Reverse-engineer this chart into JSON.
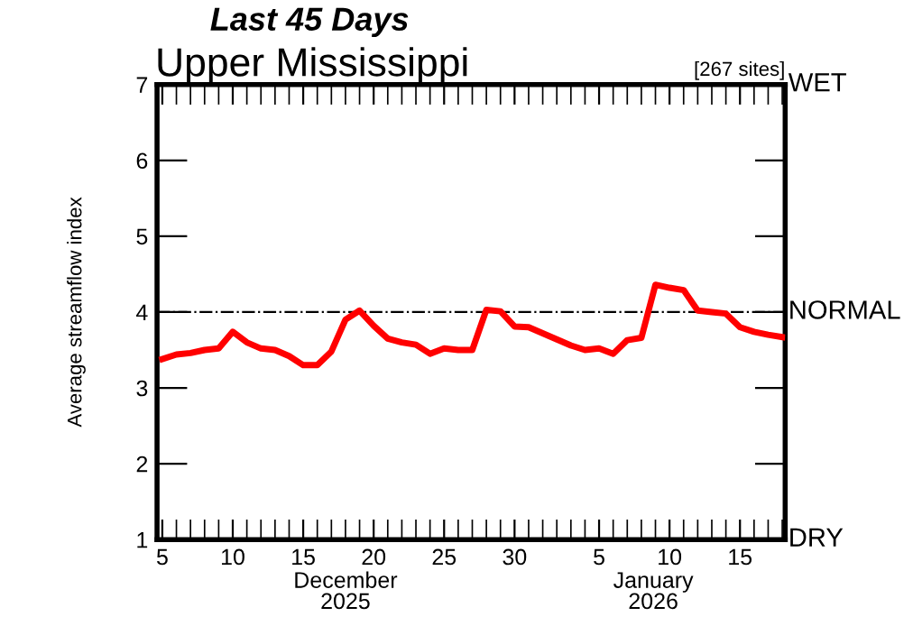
{
  "chart_data": {
    "type": "line",
    "title": "Last 45 Days",
    "subtitle": "Upper Mississippi",
    "ylabel": "Average streamflow index",
    "annotations": [
      "[267 sites]",
      "December\n2025",
      "January\n2026",
      "WET",
      "DRY"
    ],
    "x": [
      "2025-12-05",
      "2025-12-06",
      "2025-12-07",
      "2025-12-08",
      "2025-12-09",
      "2025-12-10",
      "2025-12-11",
      "2025-12-12",
      "2025-12-13",
      "2025-12-14",
      "2025-12-15",
      "2025-12-16",
      "2025-12-17",
      "2025-12-18",
      "2025-12-19",
      "2025-12-20",
      "2025-12-21",
      "2025-12-22",
      "2025-12-23",
      "2025-12-24",
      "2025-12-25",
      "2025-12-26",
      "2025-12-27",
      "2025-12-28",
      "2025-12-29",
      "2025-12-30",
      "2025-12-31",
      "2026-01-01",
      "2026-01-02",
      "2026-01-03",
      "2026-01-04",
      "2026-01-05",
      "2026-01-06",
      "2026-01-07",
      "2026-01-08",
      "2026-01-09",
      "2026-01-10",
      "2026-01-11",
      "2026-01-12",
      "2026-01-13",
      "2026-01-14",
      "2026-01-15",
      "2026-01-16",
      "2026-01-17",
      "2026-01-18"
    ],
    "series": [
      {
        "color": "#ff0000",
        "values": [
          3.38,
          3.44,
          3.46,
          3.5,
          3.52,
          3.74,
          3.6,
          3.52,
          3.5,
          3.42,
          3.3,
          3.3,
          3.48,
          3.9,
          4.02,
          3.82,
          3.65,
          3.6,
          3.57,
          3.45,
          3.52,
          3.5,
          3.5,
          4.03,
          4.01,
          3.81,
          3.8,
          3.72,
          3.64,
          3.56,
          3.5,
          3.52,
          3.45,
          3.63,
          3.66,
          4.36,
          4.32,
          4.29,
          4.02,
          4.0,
          3.98,
          3.8,
          3.74,
          3.7,
          3.67
        ]
      }
    ],
    "xlim": [
      "2025-12-04T15:00",
      "2026-01-18T05:00"
    ],
    "xticks": [
      {
        "value": "2025-12-05",
        "label": "5"
      },
      {
        "value": "2025-12-10",
        "label": "10"
      },
      {
        "value": "2025-12-15",
        "label": "15"
      },
      {
        "value": "2025-12-20",
        "label": "20"
      },
      {
        "value": "2025-12-25",
        "label": "25"
      },
      {
        "value": "2025-12-30",
        "label": "30"
      },
      {
        "value": "2026-01-05",
        "label": "5"
      },
      {
        "value": "2026-01-10",
        "label": "10"
      },
      {
        "value": "2026-01-15",
        "label": "15"
      }
    ],
    "ylim": [
      1,
      7
    ],
    "yticks": [
      1,
      2,
      3,
      4,
      5,
      6,
      7
    ],
    "ref_lines": [
      {
        "axis": "y",
        "value": 4,
        "label": "NORMAL",
        "color": "#000000",
        "line_style": "dashdot"
      }
    ],
    "grid": false,
    "legend": false,
    "marker": "none",
    "line_style": "solid"
  }
}
